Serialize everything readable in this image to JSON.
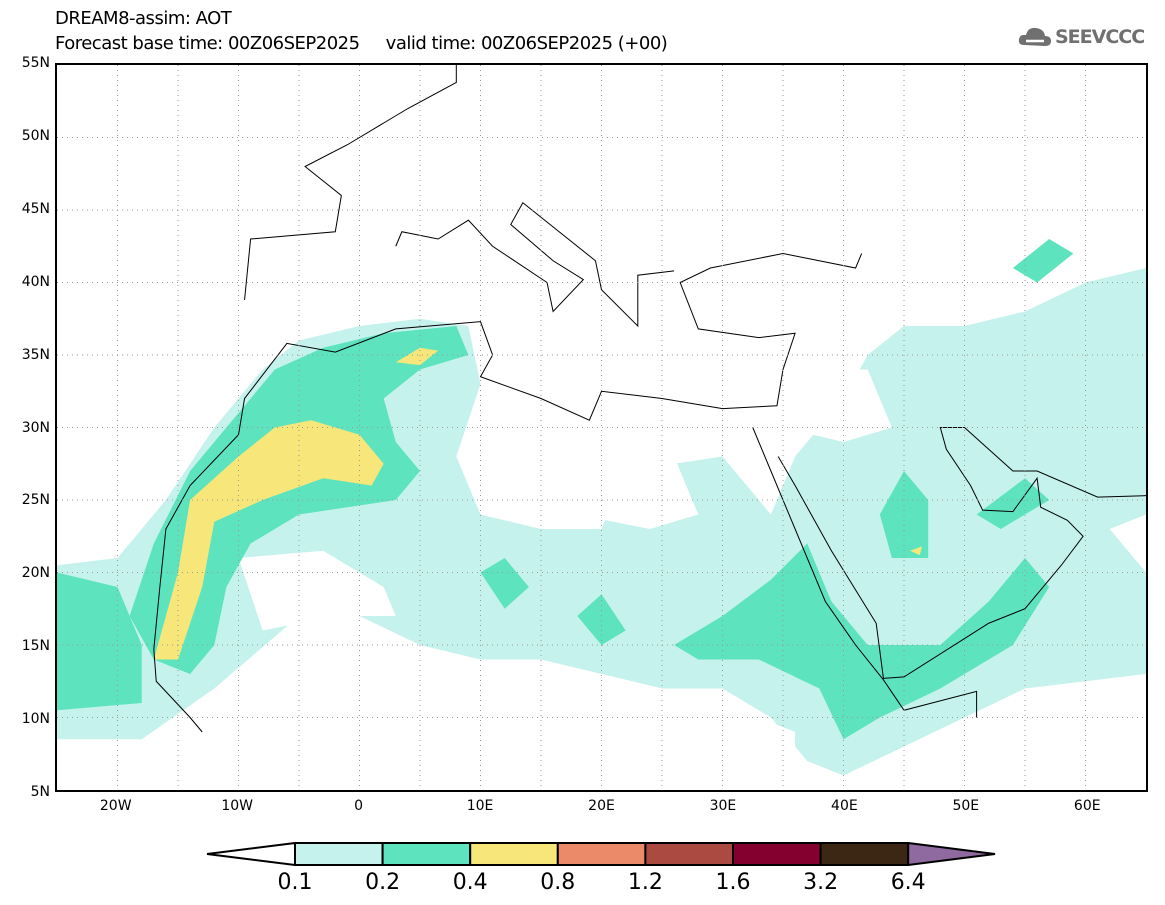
{
  "header": {
    "title": "DREAM8-assim: AOT",
    "subtitle": "Forecast base time: 00Z06SEP2025     valid time: 00Z06SEP2025 (+00)",
    "logo_text": "SEEVCCC"
  },
  "map": {
    "lon_range": [
      -25,
      65
    ],
    "lat_range": [
      5,
      55
    ],
    "lat_ticks": [
      {
        "v": 55,
        "label": "55N"
      },
      {
        "v": 50,
        "label": "50N"
      },
      {
        "v": 45,
        "label": "45N"
      },
      {
        "v": 40,
        "label": "40N"
      },
      {
        "v": 35,
        "label": "35N"
      },
      {
        "v": 30,
        "label": "30N"
      },
      {
        "v": 25,
        "label": "25N"
      },
      {
        "v": 20,
        "label": "20N"
      },
      {
        "v": 15,
        "label": "15N"
      },
      {
        "v": 10,
        "label": "10N"
      },
      {
        "v": 5,
        "label": "5N"
      }
    ],
    "lon_ticks": [
      {
        "v": -20,
        "label": "20W"
      },
      {
        "v": -10,
        "label": "10W"
      },
      {
        "v": 0,
        "label": "0"
      },
      {
        "v": 10,
        "label": "10E"
      },
      {
        "v": 20,
        "label": "20E"
      },
      {
        "v": 30,
        "label": "30E"
      },
      {
        "v": 40,
        "label": "40E"
      },
      {
        "v": 50,
        "label": "50E"
      },
      {
        "v": 60,
        "label": "60E"
      }
    ]
  },
  "colorbar": {
    "labels": [
      "0.1",
      "0.2",
      "0.4",
      "0.8",
      "1.2",
      "1.6",
      "3.2",
      "6.4"
    ],
    "colors": [
      "#c5f2ec",
      "#5ee3bf",
      "#f7e67a",
      "#eb8a69",
      "#ab4a40",
      "#84002e",
      "#3c2614"
    ],
    "under_color": "#ffffff",
    "over_color": "#8e6aa0"
  }
}
